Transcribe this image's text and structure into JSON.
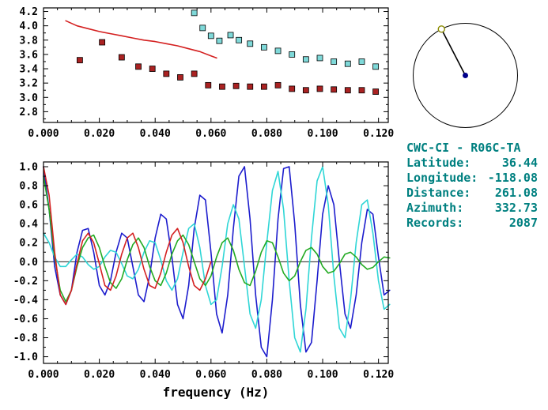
{
  "info_panel": {
    "title": "CWC-CI - R06C-TA",
    "rows": [
      {
        "label": "Latitude:",
        "value": "36.44"
      },
      {
        "label": "Longitude:",
        "value": "-118.08"
      },
      {
        "label": "Distance:",
        "value": "261.08"
      },
      {
        "label": "Azimuth:",
        "value": "332.73"
      },
      {
        "label": "Records:",
        "value": "2087"
      }
    ],
    "text_color": "#008080"
  },
  "azimuth_plot": {
    "azimuth_deg": 332.73,
    "circle_color": "#000000",
    "line_color": "#000000",
    "station_marker_color": "#8b8b00",
    "center_marker_color": "#00008b"
  },
  "chart_data": [
    {
      "type": "scatter",
      "title": "",
      "xlabel": "",
      "ylabel": "",
      "xlim": [
        0,
        0.1235
      ],
      "ylim": [
        2.65,
        4.25
      ],
      "grid": false,
      "xticks": [
        0.0,
        0.02,
        0.04,
        0.06,
        0.08,
        0.1,
        0.12
      ],
      "xtick_labels": [
        "0.000",
        "0.020",
        "0.040",
        "0.060",
        "0.080",
        "0.100",
        "0.120"
      ],
      "yticks": [
        2.8,
        3.0,
        3.2,
        3.4,
        3.6,
        3.8,
        4.0,
        4.2
      ],
      "ytick_labels": [
        "2.8",
        "3.0",
        "3.2",
        "3.4",
        "3.6",
        "3.8",
        "4.0",
        "4.2"
      ],
      "x_minor_step": 0.005,
      "y_minor_step": 0.1,
      "series": [
        {
          "name": "reference-dispersion-curve",
          "type": "line",
          "color": "#d42020",
          "x": [
            0.008,
            0.012,
            0.016,
            0.02,
            0.024,
            0.028,
            0.032,
            0.036,
            0.04,
            0.044,
            0.048,
            0.052,
            0.056,
            0.06,
            0.062
          ],
          "y": [
            4.07,
            4.0,
            3.96,
            3.92,
            3.89,
            3.86,
            3.83,
            3.8,
            3.78,
            3.75,
            3.72,
            3.68,
            3.64,
            3.58,
            3.55
          ]
        },
        {
          "name": "group-velocity-picks",
          "type": "markers",
          "color": "#aa2222",
          "x": [
            0.013,
            0.021,
            0.028,
            0.034,
            0.039,
            0.044,
            0.049,
            0.054,
            0.059,
            0.064,
            0.069,
            0.074,
            0.079,
            0.084,
            0.089,
            0.094,
            0.099,
            0.104,
            0.109,
            0.114,
            0.119
          ],
          "y": [
            3.52,
            3.77,
            3.56,
            3.43,
            3.4,
            3.33,
            3.28,
            3.33,
            3.17,
            3.15,
            3.16,
            3.15,
            3.15,
            3.17,
            3.12,
            3.1,
            3.12,
            3.11,
            3.1,
            3.1,
            3.08
          ]
        },
        {
          "name": "phase-velocity-picks",
          "type": "markers",
          "color": "#7fd9d9",
          "x": [
            0.054,
            0.057,
            0.06,
            0.063,
            0.067,
            0.07,
            0.074,
            0.079,
            0.084,
            0.089,
            0.094,
            0.099,
            0.104,
            0.109,
            0.114,
            0.119
          ],
          "y": [
            4.18,
            3.97,
            3.86,
            3.79,
            3.87,
            3.8,
            3.75,
            3.7,
            3.65,
            3.6,
            3.53,
            3.55,
            3.5,
            3.47,
            3.5,
            3.43
          ]
        }
      ]
    },
    {
      "type": "line",
      "title": "",
      "xlabel": "frequency (Hz)",
      "ylabel": "",
      "xlim": [
        0,
        0.1235
      ],
      "ylim": [
        -1.07,
        1.05
      ],
      "grid": false,
      "zero_line": true,
      "xticks": [
        0.0,
        0.02,
        0.04,
        0.06,
        0.08,
        0.1,
        0.12
      ],
      "xtick_labels": [
        "0.000",
        "0.020",
        "0.040",
        "0.060",
        "0.080",
        "0.100",
        "0.120"
      ],
      "yticks": [
        1.0,
        0.8,
        0.6,
        0.4,
        0.2,
        0.0,
        -0.2,
        -0.4,
        -0.6,
        -0.8,
        -1.0
      ],
      "ytick_labels": [
        "1.0",
        "0.8",
        "0.6",
        "0.4",
        "0.2",
        "0.0",
        "-0.2",
        "-0.4",
        "-0.6",
        "-0.8",
        "-1.0"
      ],
      "x_minor_step": 0.005,
      "y_minor_step": 0.1,
      "series": [
        {
          "name": "waveform-blue",
          "type": "line",
          "color": "#1c1ccd",
          "x0": 0,
          "dx": 0.002,
          "y": [
            1.0,
            0.55,
            -0.05,
            -0.35,
            -0.45,
            -0.3,
            0.1,
            0.33,
            0.35,
            0.1,
            -0.25,
            -0.35,
            -0.2,
            0.1,
            0.3,
            0.25,
            -0.05,
            -0.35,
            -0.42,
            -0.15,
            0.25,
            0.5,
            0.45,
            0.05,
            -0.45,
            -0.6,
            -0.25,
            0.35,
            0.7,
            0.65,
            0.1,
            -0.55,
            -0.75,
            -0.35,
            0.35,
            0.9,
            1.0,
            0.45,
            -0.35,
            -0.9,
            -1.0,
            -0.4,
            0.45,
            0.98,
            1.0,
            0.4,
            -0.45,
            -0.95,
            -0.85,
            -0.2,
            0.5,
            0.8,
            0.6,
            0.0,
            -0.55,
            -0.7,
            -0.35,
            0.2,
            0.55,
            0.5,
            0.05,
            -0.35,
            -0.3
          ]
        },
        {
          "name": "waveform-cyan",
          "type": "line",
          "color": "#2fd6d6",
          "x0": 0,
          "dx": 0.002,
          "y": [
            0.3,
            0.2,
            0.05,
            -0.05,
            -0.05,
            0.02,
            0.08,
            0.05,
            -0.03,
            -0.08,
            -0.05,
            0.05,
            0.12,
            0.1,
            -0.02,
            -0.15,
            -0.18,
            -0.08,
            0.1,
            0.22,
            0.2,
            0.02,
            -0.2,
            -0.3,
            -0.18,
            0.1,
            0.35,
            0.4,
            0.15,
            -0.25,
            -0.45,
            -0.4,
            -0.05,
            0.4,
            0.6,
            0.45,
            -0.05,
            -0.55,
            -0.7,
            -0.4,
            0.2,
            0.75,
            0.95,
            0.55,
            -0.2,
            -0.8,
            -0.95,
            -0.5,
            0.25,
            0.85,
            1.0,
            0.6,
            -0.15,
            -0.7,
            -0.8,
            -0.4,
            0.2,
            0.6,
            0.65,
            0.3,
            -0.2,
            -0.5,
            -0.45
          ]
        },
        {
          "name": "waveform-green",
          "type": "line",
          "color": "#22aa22",
          "x0": 0,
          "dx": 0.002,
          "y": [
            0.9,
            0.55,
            0.05,
            -0.3,
            -0.42,
            -0.3,
            -0.05,
            0.15,
            0.25,
            0.28,
            0.15,
            -0.05,
            -0.22,
            -0.28,
            -0.18,
            0.02,
            0.18,
            0.25,
            0.15,
            -0.05,
            -0.2,
            -0.25,
            -0.12,
            0.08,
            0.22,
            0.28,
            0.18,
            0.0,
            -0.18,
            -0.25,
            -0.15,
            0.05,
            0.2,
            0.25,
            0.12,
            -0.08,
            -0.22,
            -0.25,
            -0.1,
            0.1,
            0.22,
            0.2,
            0.05,
            -0.12,
            -0.2,
            -0.15,
            0.0,
            0.12,
            0.15,
            0.08,
            -0.05,
            -0.12,
            -0.1,
            -0.02,
            0.08,
            0.1,
            0.05,
            -0.03,
            -0.08,
            -0.06,
            0.0,
            0.05,
            0.04
          ]
        },
        {
          "name": "waveform-red",
          "type": "line",
          "color": "#d42020",
          "x0": 0,
          "dx": 0.002,
          "y": [
            1.0,
            0.7,
            0.1,
            -0.35,
            -0.45,
            -0.3,
            -0.02,
            0.22,
            0.3,
            0.2,
            -0.02,
            -0.25,
            -0.3,
            -0.15,
            0.08,
            0.25,
            0.3,
            0.15,
            -0.08,
            -0.25,
            -0.28,
            -0.12,
            0.1,
            0.28,
            0.35,
            0.2,
            -0.05,
            -0.25,
            -0.3,
            -0.18,
            0.0
          ]
        }
      ]
    }
  ]
}
